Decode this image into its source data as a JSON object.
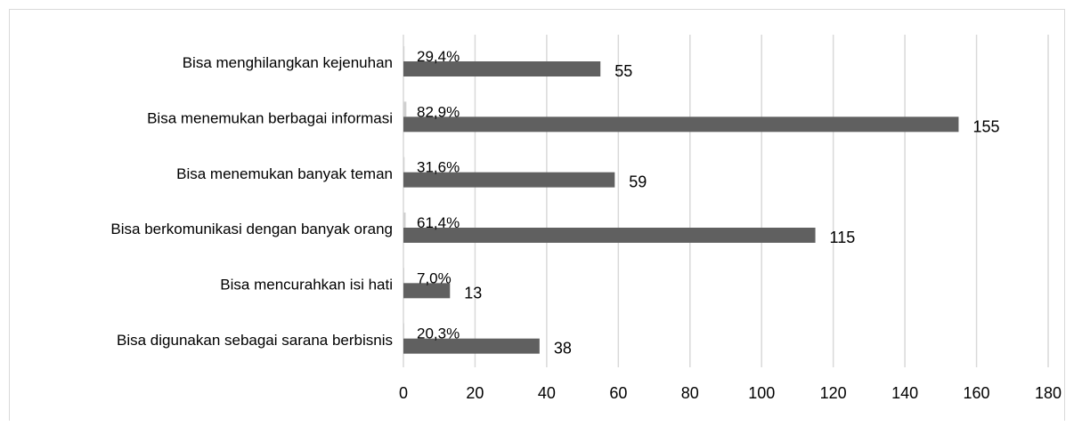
{
  "chart_data": {
    "type": "bar",
    "orientation": "horizontal",
    "categories": [
      "Bisa menghilangkan kejenuhan",
      "Bisa menemukan berbagai informasi",
      "Bisa menemukan banyak teman",
      "Bisa berkomunikasi dengan banyak orang",
      "Bisa mencurahkan isi hati",
      "Bisa digunakan sebagai sarana berbisnis"
    ],
    "series": [
      {
        "values": [
          29.4,
          82.9,
          31.6,
          61.4,
          7.0,
          20.3
        ],
        "labels": [
          "29,4%",
          "82,9%",
          "31,6%",
          "61,4%",
          "7,0%",
          "20,3%"
        ],
        "color": "#d0d0d0"
      },
      {
        "values": [
          55,
          155,
          59,
          115,
          13,
          38
        ],
        "labels": [
          "55",
          "155",
          "59",
          "115",
          "13",
          "38"
        ],
        "color": "#606060"
      }
    ],
    "xlim": [
      0,
      180
    ],
    "xticks": [
      "0",
      "20",
      "40",
      "60",
      "80",
      "100",
      "120",
      "140",
      "160",
      "180"
    ],
    "grid": true,
    "gridlines_color": "#d9d9d9",
    "title": "",
    "xlabel": "",
    "ylabel": ""
  }
}
